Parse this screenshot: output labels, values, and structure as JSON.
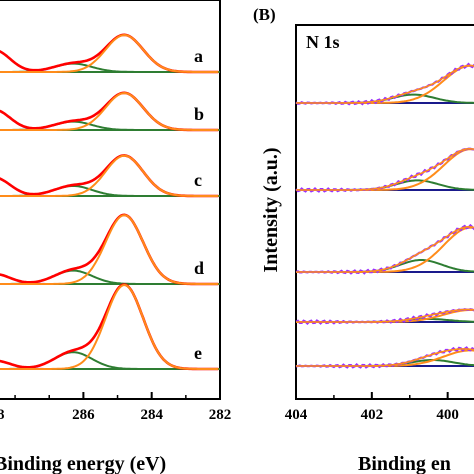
{
  "chart_data": [
    {
      "panel": "",
      "type": "line",
      "xlabel": "Binding energy (eV)",
      "xlim": [
        288.5,
        282
      ],
      "x_ticks": [
        "286",
        "284",
        "282"
      ],
      "x_tick_values": [
        286,
        284,
        282
      ],
      "cut_tick_label": "8",
      "series_colors": {
        "envelope": "#ff0000",
        "fit": "#ff8c1a",
        "component_main": "#ff8c1a",
        "component_mid": "#2e7d32",
        "component_high": "#9b30ff",
        "baseline": "#2e7d32"
      },
      "peaks": {
        "main": 284.8,
        "mid": 286.3,
        "high": 288.6
      },
      "spectra": [
        {
          "label": "a",
          "main_height": 0.44,
          "mid_height": 0.1,
          "high_height": 0.26
        },
        {
          "label": "b",
          "main_height": 0.44,
          "mid_height": 0.1,
          "high_height": 0.24
        },
        {
          "label": "c",
          "main_height": 0.48,
          "mid_height": 0.12,
          "high_height": 0.22
        },
        {
          "label": "d",
          "main_height": 0.82,
          "mid_height": 0.16,
          "high_height": 0.12
        },
        {
          "label": "e",
          "main_height": 1.0,
          "mid_height": 0.2,
          "high_height": 0.1
        }
      ]
    },
    {
      "panel": "(B)",
      "title": "N 1s",
      "type": "line",
      "xlabel": "Binding en",
      "ylabel": "Intensity (a.u.)",
      "xlim": [
        404,
        399.2
      ],
      "x_ticks": [
        "404",
        "402",
        "400"
      ],
      "x_tick_values": [
        404,
        402,
        400
      ],
      "series_colors": {
        "envelope": "#9b30ff",
        "fit": "#ff8c1a",
        "component_1": "#2e7d32",
        "component_2": "#ff8c1a",
        "baseline": "#1a1a8c"
      },
      "spectra": [
        {
          "rise": 0.62,
          "comp1_center": 400.9,
          "comp1_height": 0.14
        },
        {
          "rise": 0.68,
          "comp1_center": 400.8,
          "comp1_height": 0.16
        },
        {
          "rise": 0.74,
          "comp1_center": 400.7,
          "comp1_height": 0.2
        },
        {
          "rise": 0.2,
          "comp1_center": 400.5,
          "comp1_height": 0.05
        },
        {
          "rise": 0.26,
          "comp1_center": 400.4,
          "comp1_height": 0.1
        }
      ]
    }
  ]
}
